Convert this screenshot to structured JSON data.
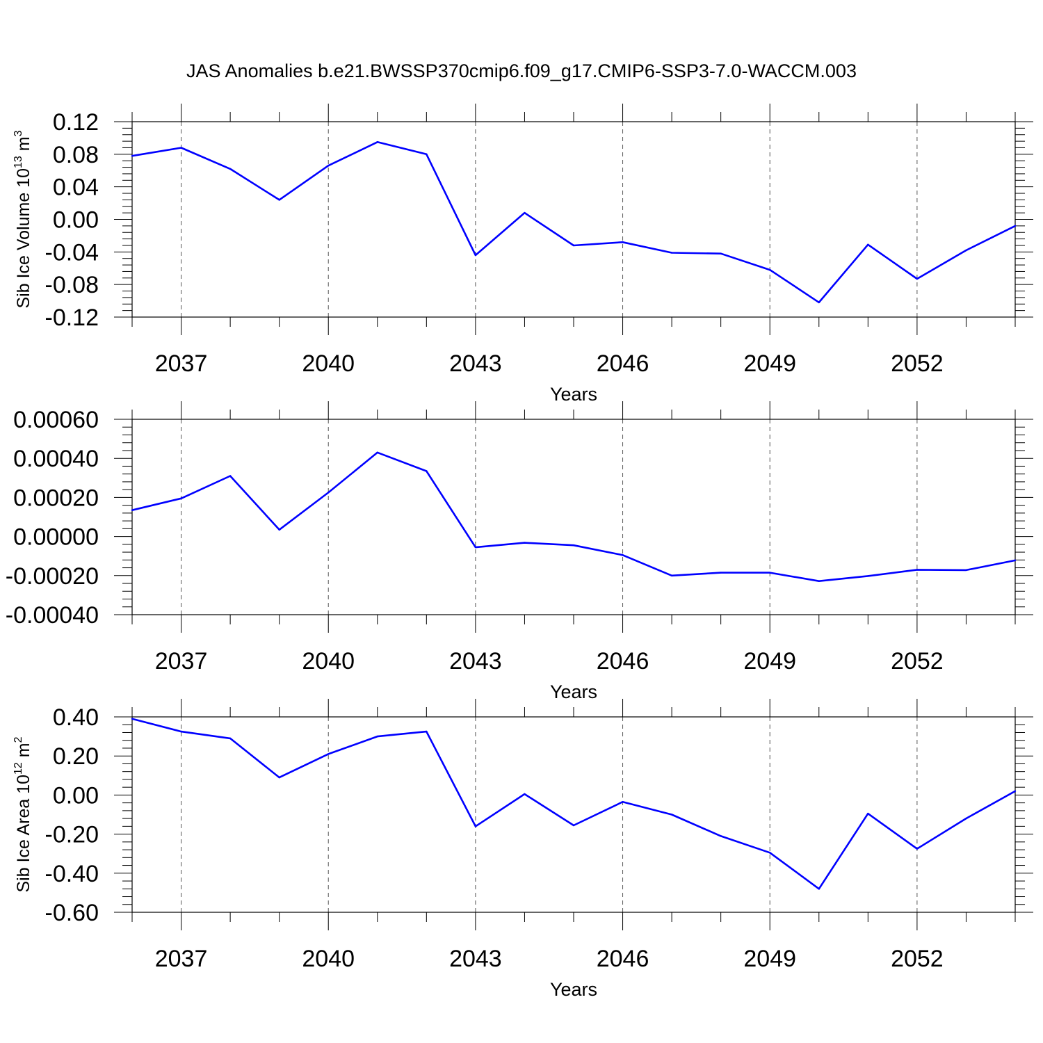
{
  "title": "JAS Anomalies b.e21.BWSSP370cmip6.f09_g17.CMIP6-SSP3-7.0-WACCM.003",
  "line_color": "#0000ff",
  "chart_data": [
    {
      "type": "line",
      "ylabel": "Sib Ice Volume 10",
      "ylabel_exp": "13",
      "ylabel_unit": " m",
      "ylabel_unit_exp": "3",
      "xlabel": "Years",
      "xlim": [
        2036,
        2054
      ],
      "ylim": [
        -0.12,
        0.12
      ],
      "xticks": [
        2037,
        2040,
        2043,
        2046,
        2049,
        2052
      ],
      "xtick_labels": [
        "2037",
        "2040",
        "2043",
        "2046",
        "2049",
        "2052"
      ],
      "yticks": [
        0.12,
        0.08,
        0.04,
        0.0,
        -0.04,
        -0.08,
        -0.12
      ],
      "ytick_labels": [
        "0.12",
        "0.08",
        "0.04",
        "0.00",
        "-0.04",
        "-0.08",
        "-0.12"
      ],
      "x": [
        2036,
        2037,
        2038,
        2039,
        2040,
        2041,
        2042,
        2043,
        2044,
        2045,
        2046,
        2047,
        2048,
        2049,
        2050,
        2051,
        2052,
        2053,
        2054
      ],
      "y": [
        0.078,
        0.088,
        0.062,
        0.024,
        0.066,
        0.095,
        0.08,
        -0.044,
        0.008,
        -0.032,
        -0.028,
        -0.041,
        -0.042,
        -0.062,
        -0.102,
        -0.031,
        -0.073,
        -0.038,
        -0.008
      ]
    },
    {
      "type": "line",
      "ylabel": "",
      "xlabel": "Years",
      "xlim": [
        2036,
        2054
      ],
      "ylim": [
        -0.0004,
        0.0006
      ],
      "xticks": [
        2037,
        2040,
        2043,
        2046,
        2049,
        2052
      ],
      "xtick_labels": [
        "2037",
        "2040",
        "2043",
        "2046",
        "2049",
        "2052"
      ],
      "yticks": [
        0.0006,
        0.0004,
        0.0002,
        0.0,
        -0.0002,
        -0.0004
      ],
      "ytick_labels": [
        "0.00060",
        "0.00040",
        "0.00020",
        "0.00000",
        "-0.00020",
        "-0.00040"
      ],
      "x": [
        2036,
        2037,
        2038,
        2039,
        2040,
        2041,
        2042,
        2043,
        2044,
        2045,
        2046,
        2047,
        2048,
        2049,
        2050,
        2051,
        2052,
        2053,
        2054
      ],
      "y": [
        0.000135,
        0.000195,
        0.00031,
        3.5e-05,
        0.000225,
        0.00043,
        0.000335,
        -5.5e-05,
        -3.2e-05,
        -4.5e-05,
        -9.5e-05,
        -0.0002,
        -0.000185,
        -0.000185,
        -0.000228,
        -0.000202,
        -0.00017,
        -0.000172,
        -0.000122
      ]
    },
    {
      "type": "line",
      "ylabel": "Sib Ice Area 10",
      "ylabel_exp": "12",
      "ylabel_unit": " m",
      "ylabel_unit_exp": "2",
      "xlabel": "Years",
      "xlim": [
        2036,
        2054
      ],
      "ylim": [
        -0.6,
        0.4
      ],
      "xticks": [
        2037,
        2040,
        2043,
        2046,
        2049,
        2052
      ],
      "xtick_labels": [
        "2037",
        "2040",
        "2043",
        "2046",
        "2049",
        "2052"
      ],
      "yticks": [
        0.4,
        0.2,
        0.0,
        -0.2,
        -0.4,
        -0.6
      ],
      "ytick_labels": [
        "0.40",
        "0.20",
        "0.00",
        "-0.20",
        "-0.40",
        "-0.60"
      ],
      "x": [
        2036,
        2037,
        2038,
        2039,
        2040,
        2041,
        2042,
        2043,
        2044,
        2045,
        2046,
        2047,
        2048,
        2049,
        2050,
        2051,
        2052,
        2053,
        2054
      ],
      "y": [
        0.39,
        0.325,
        0.29,
        0.09,
        0.21,
        0.3,
        0.325,
        -0.16,
        0.005,
        -0.155,
        -0.035,
        -0.1,
        -0.21,
        -0.295,
        -0.48,
        -0.095,
        -0.275,
        -0.12,
        0.02
      ]
    }
  ]
}
